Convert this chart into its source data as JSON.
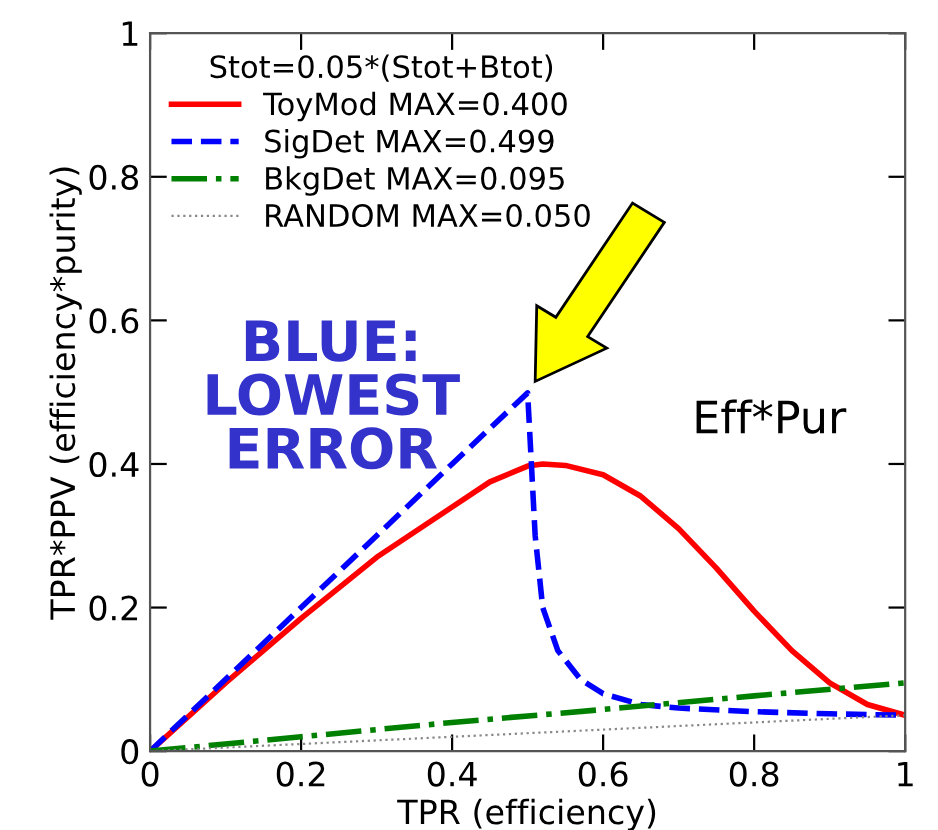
{
  "chart_data": {
    "type": "line",
    "xlabel": "TPR (efficiency)",
    "ylabel": "TPR*PPV (efficiency*purity)",
    "legend_title": "Stot=0.05*(Stot+Btot)",
    "legend": "top left",
    "grid": false,
    "xlim": [
      0,
      1
    ],
    "ylim": [
      0,
      1
    ],
    "xticks": [
      0,
      0.2,
      0.4,
      0.6,
      0.8,
      1
    ],
    "yticks": [
      0,
      0.2,
      0.4,
      0.6,
      0.8,
      1
    ],
    "series": [
      {
        "name": "ToyMod MAX=0.400",
        "color": "#ff0000",
        "line_style": "solid",
        "x": [
          0,
          0.1,
          0.2,
          0.3,
          0.4,
          0.45,
          0.5,
          0.52,
          0.55,
          0.6,
          0.65,
          0.7,
          0.75,
          0.8,
          0.85,
          0.9,
          0.95,
          1.0
        ],
        "values": [
          0,
          0.095,
          0.185,
          0.27,
          0.34,
          0.375,
          0.397,
          0.4,
          0.398,
          0.385,
          0.355,
          0.31,
          0.255,
          0.195,
          0.14,
          0.095,
          0.065,
          0.05
        ]
      },
      {
        "name": "SigDet MAX=0.499",
        "color": "#0000ff",
        "line_style": "dashed",
        "x": [
          0,
          0.1,
          0.2,
          0.3,
          0.4,
          0.5,
          0.505,
          0.51,
          0.52,
          0.54,
          0.57,
          0.6,
          0.65,
          0.7,
          0.8,
          0.9,
          1.0
        ],
        "values": [
          0,
          0.1,
          0.2,
          0.3,
          0.4,
          0.499,
          0.4,
          0.3,
          0.2,
          0.14,
          0.1,
          0.08,
          0.065,
          0.06,
          0.055,
          0.052,
          0.05
        ]
      },
      {
        "name": "BkgDet MAX=0.095",
        "color": "#008000",
        "line_style": "dashdot",
        "x": [
          0,
          0.2,
          0.4,
          0.6,
          0.8,
          1.0
        ],
        "values": [
          0,
          0.02,
          0.04,
          0.058,
          0.077,
          0.095
        ]
      },
      {
        "name": "RANDOM MAX=0.050",
        "color": "#888888",
        "line_style": "dotted",
        "x": [
          0,
          1
        ],
        "values": [
          0,
          0.05
        ]
      }
    ],
    "annotations": [
      "BLUE:\nLOWEST\nERROR",
      "Eff*Pur"
    ]
  }
}
